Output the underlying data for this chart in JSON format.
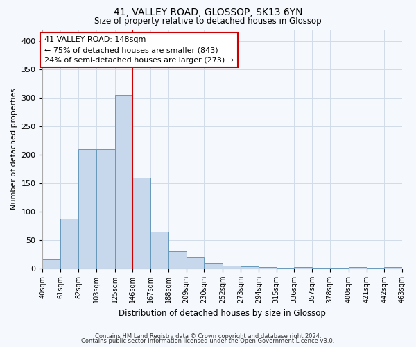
{
  "title": "41, VALLEY ROAD, GLOSSOP, SK13 6YN",
  "subtitle": "Size of property relative to detached houses in Glossop",
  "xlabel": "Distribution of detached houses by size in Glossop",
  "ylabel": "Number of detached properties",
  "bar_color": "#c8d8ec",
  "bar_edge_color": "#6699bb",
  "grid_color": "#d0dce8",
  "background_color": "#f5f8fc",
  "vline_x": 146,
  "vline_color": "#cc0000",
  "bin_edges": [
    40,
    61,
    82,
    103,
    125,
    146,
    167,
    188,
    209,
    230,
    252,
    273,
    294,
    315,
    336,
    357,
    378,
    400,
    421,
    442,
    463
  ],
  "bar_heights": [
    17,
    88,
    210,
    210,
    305,
    160,
    65,
    30,
    20,
    10,
    5,
    3,
    2,
    1,
    2,
    1,
    1,
    2,
    1,
    2
  ],
  "tick_labels": [
    "40sqm",
    "61sqm",
    "82sqm",
    "103sqm",
    "125sqm",
    "146sqm",
    "167sqm",
    "188sqm",
    "209sqm",
    "230sqm",
    "252sqm",
    "273sqm",
    "294sqm",
    "315sqm",
    "336sqm",
    "357sqm",
    "378sqm",
    "400sqm",
    "421sqm",
    "442sqm",
    "463sqm"
  ],
  "annotation_title": "41 VALLEY ROAD: 148sqm",
  "annotation_line1": "← 75% of detached houses are smaller (843)",
  "annotation_line2": "24% of semi-detached houses are larger (273) →",
  "annotation_box_color": "#ffffff",
  "annotation_box_edge": "#cc0000",
  "footer1": "Contains HM Land Registry data © Crown copyright and database right 2024.",
  "footer2": "Contains public sector information licensed under the Open Government Licence v3.0.",
  "ylim": [
    0,
    420
  ],
  "figsize": [
    6.0,
    5.0
  ],
  "dpi": 100
}
